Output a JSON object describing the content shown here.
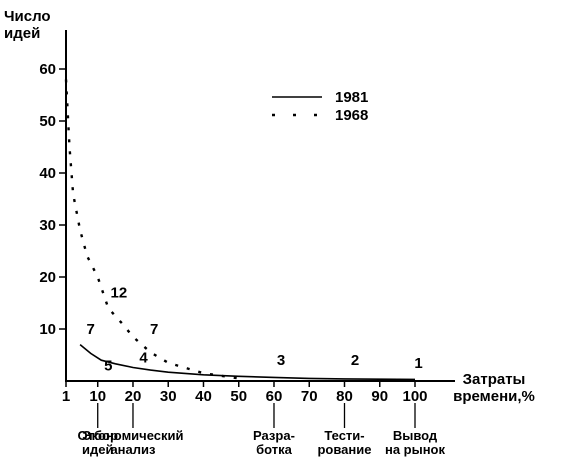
{
  "chart_data": {
    "type": "line",
    "ylabel": [
      "Число",
      "идей"
    ],
    "xlabel": [
      "Затраты",
      "времени,%"
    ],
    "xlim": [
      1,
      100
    ],
    "ylim": [
      0,
      60
    ],
    "x_ticks": [
      1,
      10,
      20,
      30,
      40,
      50,
      60,
      70,
      80,
      90,
      100
    ],
    "y_ticks": [
      10,
      20,
      30,
      40,
      50,
      60
    ],
    "grid": false,
    "legend_position": "top-right",
    "series": [
      {
        "name": "1981",
        "style": "solid",
        "x": [
          5,
          8,
          11,
          15,
          20,
          25,
          30,
          40,
          50,
          60,
          70,
          80,
          90,
          100
        ],
        "y": [
          7,
          5.3,
          4,
          3.3,
          2.6,
          2.1,
          1.7,
          1.2,
          0.9,
          0.7,
          0.5,
          0.4,
          0.35,
          0.3
        ]
      },
      {
        "name": "1968",
        "style": "dashed",
        "x": [
          1,
          2,
          3,
          5,
          7,
          10,
          13,
          17,
          20,
          25,
          30,
          40,
          50
        ],
        "y": [
          58,
          45,
          36,
          29,
          24,
          20,
          14,
          11,
          8.5,
          5.5,
          3.5,
          1.5,
          0.5
        ]
      }
    ],
    "stages": [
      {
        "label": [
          "Отбор",
          "идей"
        ],
        "x": 10
      },
      {
        "label": [
          "Экономический",
          "анализ"
        ],
        "x": 20
      },
      {
        "label": [
          "Разра-",
          "ботка"
        ],
        "x": 60
      },
      {
        "label": [
          "Тести-",
          "рование"
        ],
        "x": 80
      },
      {
        "label": [
          "Вывод",
          "на рынок"
        ],
        "x": 100
      }
    ],
    "annotations": [
      {
        "text": "7",
        "x": 8,
        "y": 10
      },
      {
        "text": "12",
        "x": 16,
        "y": 17
      },
      {
        "text": "7",
        "x": 26,
        "y": 10
      },
      {
        "text": "5",
        "x": 13,
        "y": 3
      },
      {
        "text": "4",
        "x": 23,
        "y": 4.5
      },
      {
        "text": "3",
        "x": 62,
        "y": 4
      },
      {
        "text": "2",
        "x": 83,
        "y": 4
      },
      {
        "text": "1",
        "x": 101,
        "y": 3.5
      }
    ]
  }
}
